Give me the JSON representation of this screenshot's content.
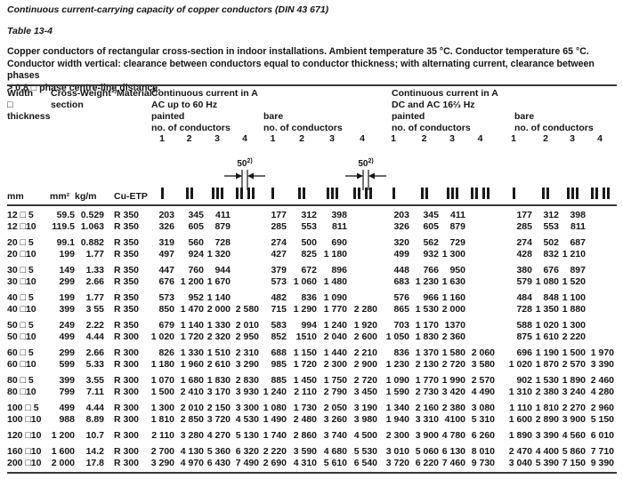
{
  "page": {
    "title": "Continuous current-carrying capacity of copper conductors (DIN 43 671)",
    "table_label": "Table 13-4",
    "description": [
      "Copper conductors of rectangular cross-section in indoor installations. Ambient temperature 35 °C. Conductor temperature 65 °C.",
      "Conductor width vertical: clearance between conductors equal to conductor thickness; with alternating current, clearance between phases",
      "> 0.8 □ phase centre-line distance."
    ]
  },
  "header": {
    "width_l1": "Width",
    "width_l2": "□",
    "width_l3": "thickness",
    "cross_l1": "Cross-",
    "cross_l2": "section",
    "weight": "Weight",
    "weight_sup": "1)",
    "material": "Material",
    "material_sup": "3)",
    "ac_title": "Continuous current in A",
    "ac_sub": "AC up to 60 Hz",
    "dc_title": "Continuous current in A",
    "dc_sub": "DC and AC 16⅔ Hz",
    "painted": "painted",
    "bare": "bare",
    "conductors": "no. of conductors",
    "col_numbers": [
      "1",
      "2",
      "3",
      "4"
    ],
    "dim_value": "50",
    "dim_sup": "2)"
  },
  "units": {
    "size": "mm",
    "cross_section": "mm²",
    "weight": "kg/m",
    "material": "Cu-ETP"
  },
  "rows": [
    {
      "size": "12 □ 5",
      "mm2": "59.5",
      "kgm": "0.529",
      "mat": "R 350",
      "ac_painted": [
        "203",
        "345",
        "411",
        ""
      ],
      "ac_bare": [
        "177",
        "312",
        "398",
        ""
      ],
      "dc_painted": [
        "203",
        "345",
        "411",
        ""
      ],
      "dc_bare": [
        "177",
        "312",
        "398",
        ""
      ]
    },
    {
      "size": "12 □10",
      "mm2": "119.5",
      "kgm": "1.063",
      "mat": "R 350",
      "ac_painted": [
        "326",
        "605",
        "879",
        ""
      ],
      "ac_bare": [
        "285",
        "553",
        "811",
        ""
      ],
      "dc_painted": [
        "326",
        "605",
        "879",
        ""
      ],
      "dc_bare": [
        "285",
        "553",
        "811",
        ""
      ]
    },
    {
      "size": "20 □ 5",
      "mm2": "99.1",
      "kgm": "0.882",
      "mat": "R 350",
      "gap": true,
      "ac_painted": [
        "319",
        "560",
        "728",
        ""
      ],
      "ac_bare": [
        "274",
        "500",
        "690",
        ""
      ],
      "dc_painted": [
        "320",
        "562",
        "729",
        ""
      ],
      "dc_bare": [
        "274",
        "502",
        "687",
        ""
      ]
    },
    {
      "size": "20 □10",
      "mm2": "199",
      "kgm": "1.77",
      "mat": "R 350",
      "ac_painted": [
        "497",
        "924",
        "1 320",
        ""
      ],
      "ac_bare": [
        "427",
        "825",
        "1 180",
        ""
      ],
      "dc_painted": [
        "499",
        "932",
        "1 300",
        ""
      ],
      "dc_bare": [
        "428",
        "832",
        "1 210",
        ""
      ]
    },
    {
      "size": "30 □ 5",
      "mm2": "149",
      "kgm": "1.33",
      "mat": "R 350",
      "gap": true,
      "ac_painted": [
        "447",
        "760",
        "944",
        ""
      ],
      "ac_bare": [
        "379",
        "672",
        "896",
        ""
      ],
      "dc_painted": [
        "448",
        "766",
        "950",
        ""
      ],
      "dc_bare": [
        "380",
        "676",
        "897",
        ""
      ]
    },
    {
      "size": "30 □10",
      "mm2": "299",
      "kgm": "2.66",
      "mat": "R 350",
      "ac_painted": [
        "676",
        "1 200",
        "1 670",
        ""
      ],
      "ac_bare": [
        "573",
        "1 060",
        "1 480",
        ""
      ],
      "dc_painted": [
        "683",
        "1 230",
        "1 630",
        ""
      ],
      "dc_bare": [
        "579",
        "1 080",
        "1 520",
        ""
      ]
    },
    {
      "size": "40 □ 5",
      "mm2": "199",
      "kgm": "1.77",
      "mat": "R 350",
      "gap": true,
      "ac_painted": [
        "573",
        "952",
        "1 140",
        ""
      ],
      "ac_bare": [
        "482",
        "836",
        "1 090",
        ""
      ],
      "dc_painted": [
        "576",
        "966",
        "1 160",
        ""
      ],
      "dc_bare": [
        "484",
        "848",
        "1 100",
        ""
      ]
    },
    {
      "size": "40 □10",
      "mm2": "399",
      "kgm": "3 55",
      "mat": "R 350",
      "ac_painted": [
        "850",
        "1 470",
        "2 000",
        "2 580"
      ],
      "ac_bare": [
        "715",
        "1 290",
        "1 770",
        "2 280"
      ],
      "dc_painted": [
        "865",
        "1 530",
        "2 000",
        ""
      ],
      "dc_bare": [
        "728",
        "1 350",
        "1 880",
        ""
      ]
    },
    {
      "size": "50 □ 5",
      "mm2": "249",
      "kgm": "2.22",
      "mat": "R 350",
      "gap": true,
      "ac_painted": [
        "679",
        "1 140",
        "1 330",
        "2 010"
      ],
      "ac_bare": [
        "583",
        "994",
        "1 240",
        "1 920"
      ],
      "dc_painted": [
        "703",
        "1 170",
        "1370",
        ""
      ],
      "dc_bare": [
        "588",
        "1 020",
        "1 300",
        ""
      ]
    },
    {
      "size": "50 □10",
      "mm2": "499",
      "kgm": "4.44",
      "mat": "R 300",
      "ac_painted": [
        "1 020",
        "1 720",
        "2 320",
        "2 950"
      ],
      "ac_bare": [
        "852",
        "1510",
        "2 040",
        "2 600"
      ],
      "dc_painted": [
        "1 050",
        "1 830",
        "2 360",
        ""
      ],
      "dc_bare": [
        "875",
        "1 610",
        "2 220",
        ""
      ]
    },
    {
      "size": "60 □ 5",
      "mm2": "299",
      "kgm": "2.66",
      "mat": "R 300",
      "gap": true,
      "ac_painted": [
        "826",
        "1 330",
        "1 510",
        "2 310"
      ],
      "ac_bare": [
        "688",
        "1 150",
        "1 440",
        "2 210"
      ],
      "dc_painted": [
        "836",
        "1 370",
        "1 580",
        "2 060"
      ],
      "dc_bare": [
        "696",
        "1 190",
        "1 500",
        "1 970"
      ]
    },
    {
      "size": "60 □10",
      "mm2": "599",
      "kgm": "5.33",
      "mat": "R 300",
      "ac_painted": [
        "1 180",
        "1 960",
        "2 610",
        "3 290"
      ],
      "ac_bare": [
        "985",
        "1 720",
        "2 300",
        "2 900"
      ],
      "dc_painted": [
        "1 230",
        "2 130",
        "2 720",
        "3 580"
      ],
      "dc_bare": [
        "1 020",
        "1 870",
        "2 570",
        "3 390"
      ]
    },
    {
      "size": "80 □ 5",
      "mm2": "399",
      "kgm": "3.55",
      "mat": "R 300",
      "gap": true,
      "ac_painted": [
        "1 070",
        "1 680",
        "1 830",
        "2 830"
      ],
      "ac_bare": [
        "885",
        "1 450",
        "1 750",
        "2 720"
      ],
      "dc_painted": [
        "1 090",
        "1 770",
        "1 990",
        "2 570"
      ],
      "dc_bare": [
        "902",
        "1 530",
        "1 890",
        "2 460"
      ]
    },
    {
      "size": "80 □10",
      "mm2": "799",
      "kgm": "7.11",
      "mat": "R 300",
      "ac_painted": [
        "1 500",
        "2 410",
        "3 170",
        "3 930"
      ],
      "ac_bare": [
        "1 240",
        "2 110",
        "2 790",
        "3 450"
      ],
      "dc_painted": [
        "1 590",
        "2 730",
        "3 420",
        "4 490"
      ],
      "dc_bare": [
        "1 310",
        "2 380",
        "3 240",
        "4 280"
      ]
    },
    {
      "size": "100 □ 5",
      "mm2": "499",
      "kgm": "4.44",
      "mat": "R 300",
      "gap": true,
      "ac_painted": [
        "1 300",
        "2 010",
        "2 150",
        "3 300"
      ],
      "ac_bare": [
        "1 080",
        "1 730",
        "2 050",
        "3 190"
      ],
      "dc_painted": [
        "1 340",
        "2 160",
        "2 380",
        "3 080"
      ],
      "dc_bare": [
        "1 110",
        "1 810",
        "2 270",
        "2 960"
      ]
    },
    {
      "size": "100 □10",
      "mm2": "988",
      "kgm": "8.89",
      "mat": "R 300",
      "ac_painted": [
        "1 810",
        "2 850",
        "3 720",
        "4 530"
      ],
      "ac_bare": [
        "1 490",
        "2 480",
        "3 260",
        "3 980"
      ],
      "dc_painted": [
        "1 940",
        "3 310",
        "4100",
        "5 310"
      ],
      "dc_bare": [
        "1 600",
        "2 890",
        "3 900",
        "5 150"
      ]
    },
    {
      "size": "120 □10",
      "mm2": "1 200",
      "kgm": "10.7",
      "mat": "R 300",
      "gap": true,
      "ac_painted": [
        "2 110",
        "3 280",
        "4 270",
        "5 130"
      ],
      "ac_bare": [
        "1 740",
        "2 860",
        "3 740",
        "4 500"
      ],
      "dc_painted": [
        "2 300",
        "3 900",
        "4 780",
        "6 260"
      ],
      "dc_bare": [
        "1 890",
        "3 390",
        "4 560",
        "6 010"
      ]
    },
    {
      "size": "160 □10",
      "mm2": "1 600",
      "kgm": "14.2",
      "mat": "R 300",
      "gap": true,
      "ac_painted": [
        "2 700",
        "4 130",
        "5 360",
        "6 320"
      ],
      "ac_bare": [
        "2 220",
        "3 590",
        "4 680",
        "5 530"
      ],
      "dc_painted": [
        "3 010",
        "5 060",
        "6 130",
        "8 010"
      ],
      "dc_bare": [
        "2 470",
        "4 400",
        "5 860",
        "7 710"
      ]
    },
    {
      "size": "200 □10",
      "mm2": "2 000",
      "kgm": "17.8",
      "mat": "R 300",
      "ac_painted": [
        "3 290",
        "4 970",
        "6 430",
        "7 490"
      ],
      "ac_bare": [
        "2 690",
        "4 310",
        "5 610",
        "6 540"
      ],
      "dc_painted": [
        "3 720",
        "6 220",
        "7 460",
        "9 730"
      ],
      "dc_bare": [
        "3 040",
        "5 390",
        "7 150",
        "9 390"
      ]
    }
  ]
}
